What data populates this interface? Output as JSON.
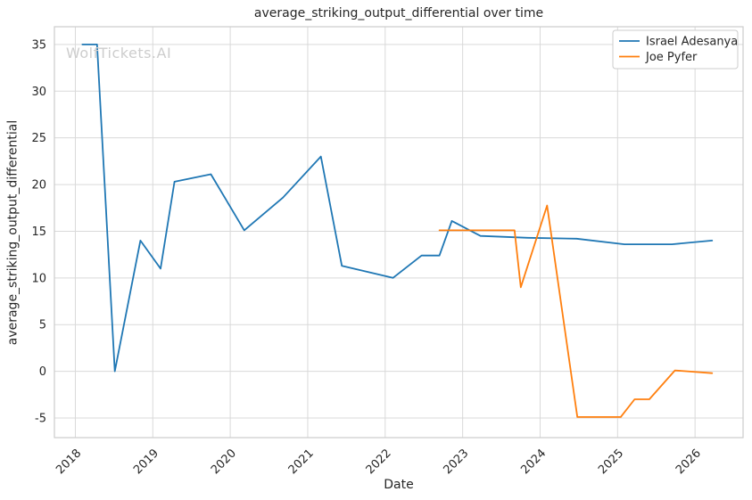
{
  "watermark": "WolfTickets.AI",
  "chart_data": {
    "type": "line",
    "title": "average_striking_output_differential over time",
    "xlabel": "Date",
    "ylabel": "average_striking_output_differential",
    "xlim": [
      2017.73,
      2026.62
    ],
    "ylim": [
      -7.1,
      36.9
    ],
    "x_ticks": [
      2018,
      2019,
      2020,
      2021,
      2022,
      2023,
      2024,
      2025,
      2026
    ],
    "y_ticks": [
      -5,
      0,
      5,
      10,
      15,
      20,
      25,
      30,
      35
    ],
    "grid": true,
    "legend_position": "upper right",
    "series": [
      {
        "name": "Israel Adesanya",
        "color": "#1f77b4",
        "points": [
          [
            2018.09,
            35
          ],
          [
            2018.28,
            35
          ],
          [
            2018.51,
            0
          ],
          [
            2018.84,
            14
          ],
          [
            2019.1,
            11
          ],
          [
            2019.28,
            20.3
          ],
          [
            2019.75,
            21.1
          ],
          [
            2020.18,
            15.1
          ],
          [
            2020.68,
            18.6
          ],
          [
            2021.17,
            23.0
          ],
          [
            2021.44,
            11.3
          ],
          [
            2022.1,
            10.0
          ],
          [
            2022.47,
            12.4
          ],
          [
            2022.7,
            12.4
          ],
          [
            2022.86,
            16.1
          ],
          [
            2023.23,
            14.5
          ],
          [
            2023.84,
            14.3
          ],
          [
            2024.47,
            14.2
          ],
          [
            2025.09,
            13.6
          ],
          [
            2025.7,
            13.6
          ],
          [
            2026.22,
            14.0
          ]
        ]
      },
      {
        "name": "Joe Pyfer",
        "color": "#ff7f0e",
        "points": [
          [
            2022.7,
            15.1
          ],
          [
            2023.67,
            15.1
          ],
          [
            2023.75,
            9.0
          ],
          [
            2024.09,
            17.75
          ],
          [
            2024.48,
            -4.9
          ],
          [
            2025.04,
            -4.9
          ],
          [
            2025.22,
            -3.0
          ],
          [
            2025.41,
            -3.0
          ],
          [
            2025.74,
            0.1
          ],
          [
            2026.22,
            -0.2
          ]
        ]
      }
    ],
    "colors": {
      "grid": "#d9d9d9",
      "spine": "#cccccc",
      "text": "#262626",
      "legend_border": "#cccccc",
      "background": "#ffffff"
    }
  }
}
